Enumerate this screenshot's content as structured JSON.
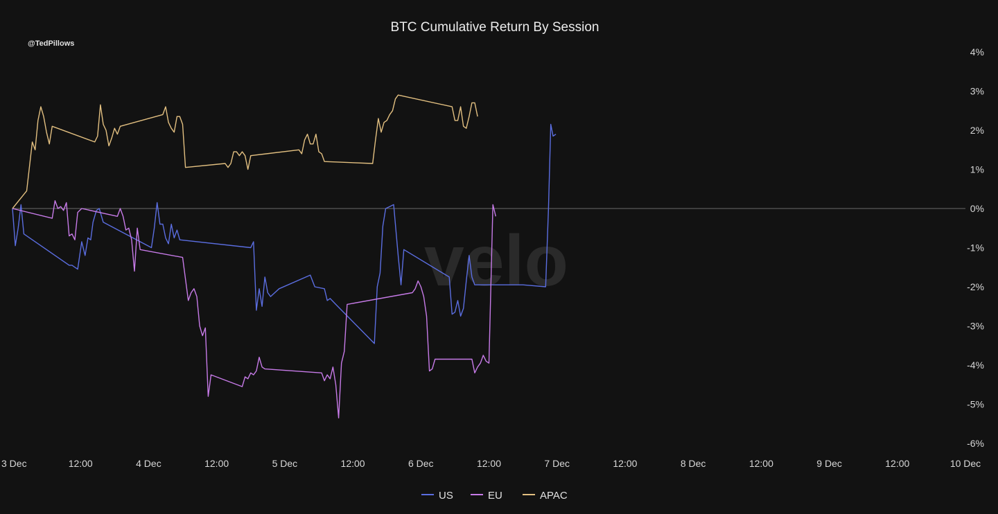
{
  "chart_data": {
    "type": "line",
    "title": "BTC Cumulative Return By Session",
    "watermark_handle": "@TedPillows",
    "brand_watermark": "velo",
    "x_tick_labels": [
      "3 Dec",
      "12:00",
      "4 Dec",
      "12:00",
      "5 Dec",
      "12:00",
      "6 Dec",
      "12:00",
      "7 Dec",
      "12:00",
      "8 Dec",
      "12:00",
      "9 Dec",
      "12:00",
      "10 Dec"
    ],
    "x_tick_values": [
      0,
      12,
      24,
      36,
      48,
      60,
      72,
      84,
      96,
      108,
      120,
      132,
      144,
      156,
      168
    ],
    "x_unit": "hours since 3 Dec 00:00",
    "xlim": [
      0,
      168
    ],
    "y_tick_labels": [
      "4%",
      "3%",
      "2%",
      "1%",
      "0%",
      "-1%",
      "-2%",
      "-3%",
      "-4%",
      "-5%",
      "-6%"
    ],
    "y_tick_values": [
      4,
      3,
      2,
      1,
      0,
      -1,
      -2,
      -3,
      -4,
      -5,
      -6
    ],
    "ylim": [
      -6,
      4
    ],
    "zero_line": true,
    "grid": false,
    "legend_position": "bottom-center",
    "series": [
      {
        "name": "US",
        "color": "#5b6ee1",
        "points": [
          [
            0.0,
            0.0
          ],
          [
            0.5,
            -0.95
          ],
          [
            1.0,
            -0.5
          ],
          [
            1.5,
            0.1
          ],
          [
            2.0,
            -0.65
          ],
          [
            10.0,
            -1.45
          ],
          [
            10.5,
            -1.45
          ],
          [
            11.0,
            -1.5
          ],
          [
            11.5,
            -1.55
          ],
          [
            12.2,
            -0.85
          ],
          [
            12.8,
            -1.2
          ],
          [
            13.3,
            -0.75
          ],
          [
            13.8,
            -0.8
          ],
          [
            14.2,
            -0.35
          ],
          [
            14.8,
            -0.05
          ],
          [
            15.3,
            0.0
          ],
          [
            16.0,
            -0.35
          ],
          [
            24.5,
            -1.0
          ],
          [
            25.0,
            -0.5
          ],
          [
            25.5,
            0.15
          ],
          [
            26.0,
            -0.4
          ],
          [
            26.5,
            -0.4
          ],
          [
            27.0,
            -0.75
          ],
          [
            27.5,
            -0.9
          ],
          [
            28.0,
            -0.4
          ],
          [
            28.5,
            -0.75
          ],
          [
            29.0,
            -0.55
          ],
          [
            29.5,
            -0.8
          ],
          [
            42.0,
            -1.0
          ],
          [
            42.5,
            -0.85
          ],
          [
            43.0,
            -2.6
          ],
          [
            43.5,
            -2.05
          ],
          [
            44.0,
            -2.5
          ],
          [
            44.5,
            -1.75
          ],
          [
            45.0,
            -2.15
          ],
          [
            45.5,
            -2.25
          ],
          [
            47.0,
            -2.05
          ],
          [
            52.5,
            -1.7
          ],
          [
            53.3,
            -2.0
          ],
          [
            55.0,
            -2.05
          ],
          [
            55.5,
            -2.35
          ],
          [
            56.0,
            -2.3
          ],
          [
            57.0,
            -2.45
          ],
          [
            63.8,
            -3.45
          ],
          [
            64.3,
            -2.0
          ],
          [
            64.8,
            -1.65
          ],
          [
            65.3,
            -0.45
          ],
          [
            65.8,
            0.0
          ],
          [
            66.5,
            0.05
          ],
          [
            67.2,
            0.1
          ],
          [
            68.0,
            -1.2
          ],
          [
            68.5,
            -1.95
          ],
          [
            69.0,
            -1.05
          ],
          [
            77.0,
            -1.75
          ],
          [
            77.5,
            -2.7
          ],
          [
            78.0,
            -2.65
          ],
          [
            78.5,
            -2.35
          ],
          [
            79.0,
            -2.75
          ],
          [
            79.5,
            -2.55
          ],
          [
            80.0,
            -1.85
          ],
          [
            80.5,
            -1.2
          ],
          [
            81.0,
            -1.75
          ],
          [
            81.5,
            -1.95
          ],
          [
            90.0,
            -1.95
          ],
          [
            94.0,
            -2.0
          ],
          [
            94.5,
            0.0
          ],
          [
            94.9,
            2.15
          ],
          [
            95.3,
            1.85
          ],
          [
            95.8,
            1.9
          ]
        ]
      },
      {
        "name": "EU",
        "color": "#c77be8",
        "points": [
          [
            0.0,
            0.0
          ],
          [
            7.0,
            -0.25
          ],
          [
            7.5,
            0.2
          ],
          [
            8.0,
            0.0
          ],
          [
            8.5,
            0.05
          ],
          [
            9.0,
            -0.05
          ],
          [
            9.5,
            0.15
          ],
          [
            10.0,
            -0.7
          ],
          [
            10.5,
            -0.65
          ],
          [
            11.0,
            -0.8
          ],
          [
            11.5,
            -0.1
          ],
          [
            12.2,
            0.0
          ],
          [
            18.5,
            -0.2
          ],
          [
            19.0,
            0.0
          ],
          [
            19.5,
            -0.2
          ],
          [
            20.0,
            -0.55
          ],
          [
            20.5,
            -0.5
          ],
          [
            21.0,
            -0.8
          ],
          [
            21.5,
            -1.6
          ],
          [
            22.0,
            -0.5
          ],
          [
            22.5,
            -1.05
          ],
          [
            30.0,
            -1.25
          ],
          [
            31.0,
            -2.35
          ],
          [
            31.5,
            -2.15
          ],
          [
            32.0,
            -2.05
          ],
          [
            32.5,
            -2.25
          ],
          [
            33.0,
            -3.0
          ],
          [
            33.5,
            -3.25
          ],
          [
            34.0,
            -3.05
          ],
          [
            34.5,
            -4.8
          ],
          [
            35.0,
            -4.25
          ],
          [
            40.5,
            -4.55
          ],
          [
            41.0,
            -4.3
          ],
          [
            41.5,
            -4.35
          ],
          [
            42.0,
            -4.2
          ],
          [
            42.5,
            -4.25
          ],
          [
            43.0,
            -4.15
          ],
          [
            43.5,
            -3.8
          ],
          [
            44.0,
            -4.05
          ],
          [
            44.5,
            -4.1
          ],
          [
            54.5,
            -4.2
          ],
          [
            55.0,
            -4.4
          ],
          [
            55.5,
            -4.25
          ],
          [
            56.0,
            -4.35
          ],
          [
            56.5,
            -4.05
          ],
          [
            57.0,
            -4.5
          ],
          [
            57.5,
            -5.35
          ],
          [
            58.0,
            -3.95
          ],
          [
            58.5,
            -3.65
          ],
          [
            59.0,
            -2.45
          ],
          [
            70.5,
            -2.15
          ],
          [
            71.0,
            -2.05
          ],
          [
            71.5,
            -1.85
          ],
          [
            72.0,
            -2.0
          ],
          [
            72.5,
            -2.25
          ],
          [
            73.0,
            -2.75
          ],
          [
            73.5,
            -4.15
          ],
          [
            74.0,
            -4.1
          ],
          [
            74.5,
            -3.85
          ],
          [
            81.0,
            -3.85
          ],
          [
            81.5,
            -4.2
          ],
          [
            82.0,
            -4.05
          ],
          [
            82.5,
            -3.95
          ],
          [
            83.0,
            -3.75
          ],
          [
            83.5,
            -3.9
          ],
          [
            84.0,
            -3.95
          ],
          [
            84.7,
            0.1
          ],
          [
            85.2,
            -0.2
          ]
        ]
      },
      {
        "name": "APAC",
        "color": "#e3c081",
        "points": [
          [
            0.0,
            0.0
          ],
          [
            2.5,
            0.45
          ],
          [
            3.5,
            1.7
          ],
          [
            4.0,
            1.5
          ],
          [
            4.5,
            2.25
          ],
          [
            5.0,
            2.6
          ],
          [
            5.5,
            2.35
          ],
          [
            6.0,
            1.95
          ],
          [
            6.5,
            1.65
          ],
          [
            7.0,
            2.1
          ],
          [
            14.5,
            1.7
          ],
          [
            15.0,
            1.85
          ],
          [
            15.5,
            2.65
          ],
          [
            16.0,
            2.15
          ],
          [
            16.5,
            2.0
          ],
          [
            17.0,
            1.6
          ],
          [
            17.5,
            1.8
          ],
          [
            18.0,
            2.05
          ],
          [
            18.5,
            1.9
          ],
          [
            19.0,
            2.1
          ],
          [
            26.5,
            2.4
          ],
          [
            27.0,
            2.6
          ],
          [
            27.5,
            2.2
          ],
          [
            28.0,
            2.05
          ],
          [
            28.5,
            1.95
          ],
          [
            29.0,
            2.35
          ],
          [
            29.5,
            2.35
          ],
          [
            30.0,
            2.15
          ],
          [
            30.5,
            1.05
          ],
          [
            37.5,
            1.15
          ],
          [
            38.0,
            1.05
          ],
          [
            38.5,
            1.15
          ],
          [
            39.0,
            1.45
          ],
          [
            39.5,
            1.45
          ],
          [
            40.0,
            1.35
          ],
          [
            40.5,
            1.45
          ],
          [
            41.0,
            1.35
          ],
          [
            41.5,
            1.0
          ],
          [
            42.0,
            1.35
          ],
          [
            50.5,
            1.5
          ],
          [
            51.0,
            1.4
          ],
          [
            51.5,
            1.75
          ],
          [
            52.0,
            1.9
          ],
          [
            52.5,
            1.65
          ],
          [
            53.0,
            1.65
          ],
          [
            53.5,
            1.9
          ],
          [
            54.0,
            1.45
          ],
          [
            54.5,
            1.4
          ],
          [
            55.0,
            1.2
          ],
          [
            63.5,
            1.15
          ],
          [
            64.0,
            1.75
          ],
          [
            64.5,
            2.3
          ],
          [
            65.0,
            1.95
          ],
          [
            65.5,
            2.2
          ],
          [
            66.0,
            2.25
          ],
          [
            66.5,
            2.4
          ],
          [
            67.0,
            2.5
          ],
          [
            67.5,
            2.8
          ],
          [
            68.0,
            2.9
          ],
          [
            77.5,
            2.6
          ],
          [
            78.0,
            2.25
          ],
          [
            78.5,
            2.25
          ],
          [
            79.0,
            2.6
          ],
          [
            79.5,
            2.1
          ],
          [
            80.0,
            2.05
          ],
          [
            80.5,
            2.35
          ],
          [
            81.0,
            2.7
          ],
          [
            81.5,
            2.7
          ],
          [
            82.0,
            2.35
          ]
        ]
      }
    ]
  }
}
